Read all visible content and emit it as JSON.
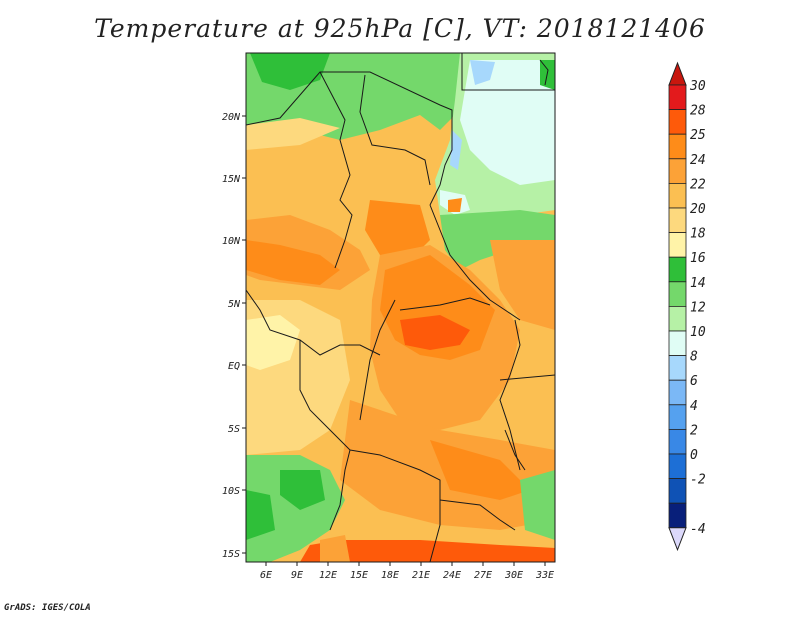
{
  "title": "Temperature at 925hPa [C], VT: 2018121406",
  "credit": "GrADS: IGES/COLA",
  "map": {
    "lon_labels": [
      "6E",
      "9E",
      "12E",
      "15E",
      "18E",
      "21E",
      "24E",
      "27E",
      "30E",
      "33E"
    ],
    "lat_labels": [
      "20N",
      "15N",
      "10N",
      "5N",
      "EQ",
      "5S",
      "10S",
      "15S"
    ]
  },
  "colorbar": {
    "levels": [
      "30",
      "28",
      "25",
      "24",
      "22",
      "20",
      "18",
      "16",
      "14",
      "12",
      "10",
      "8",
      "6",
      "4",
      "2",
      "0",
      "-2",
      "-4"
    ],
    "colors": [
      "#e31a1c",
      "#fe5a0a",
      "#fe8c19",
      "#fca237",
      "#fbbf52",
      "#fdd97e",
      "#fff3a8",
      "#2fbf39",
      "#74d86b",
      "#b6f1a6",
      "#e0fdf5",
      "#a7d8fc",
      "#7bb8f6",
      "#55a1ef",
      "#3988e6",
      "#1d6fd6",
      "#0f52b5",
      "#081f7a"
    ],
    "top_arrow_color": "#c8170e",
    "bottom_arrow_color": "#dcd9fb"
  }
}
